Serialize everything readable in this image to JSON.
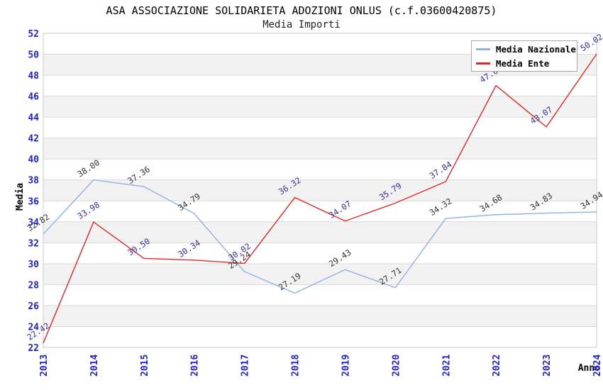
{
  "header": {
    "title": "ASA ASSOCIAZIONE SOLIDARIETA ADOZIONI ONLUS (c.f.03600420875)",
    "subtitle": "Media Importi"
  },
  "legend": {
    "position": "top-right",
    "items": [
      {
        "label": "Media Nazionale",
        "color": "#8cb4e2"
      },
      {
        "label": "Media Ente",
        "color": "#e62626"
      }
    ]
  },
  "axes": {
    "y_title": "Media",
    "x_title": "Anno",
    "y_tick_labels": [
      "22",
      "24",
      "26",
      "28",
      "30",
      "32",
      "34",
      "36",
      "38",
      "40",
      "42",
      "44",
      "46",
      "48",
      "50",
      "52"
    ],
    "tick_label_color": "#2222cc"
  },
  "chart_data": {
    "type": "line",
    "title": "ASA ASSOCIAZIONE SOLIDARIETA ADOZIONI ONLUS (c.f.03600420875)",
    "subtitle": "Media Importi",
    "categories": [
      "2013",
      "2014",
      "2015",
      "2016",
      "2017",
      "2018",
      "2019",
      "2020",
      "2021",
      "2022",
      "2023",
      "2024"
    ],
    "series": [
      {
        "name": "Media Nazionale",
        "color": "#8cb4e2",
        "label_color": "#333333",
        "values": [
          32.82,
          38.0,
          37.36,
          34.79,
          29.24,
          27.19,
          29.43,
          27.71,
          34.32,
          34.68,
          34.83,
          34.94
        ]
      },
      {
        "name": "Media Ente",
        "color": "#e62626",
        "label_color": "#333399",
        "values": [
          22.42,
          33.98,
          30.5,
          30.34,
          30.02,
          36.32,
          34.07,
          35.79,
          37.84,
          47.01,
          43.07,
          50.02
        ]
      }
    ],
    "xlabel": "Anno",
    "ylabel": "Media",
    "ylim": [
      22,
      52
    ],
    "ytick_step": 2,
    "grid": "horizontal gridlines with alternating gray/white bands",
    "legend_position": "top-right",
    "point_labels": "each point labeled with value, rotated"
  }
}
